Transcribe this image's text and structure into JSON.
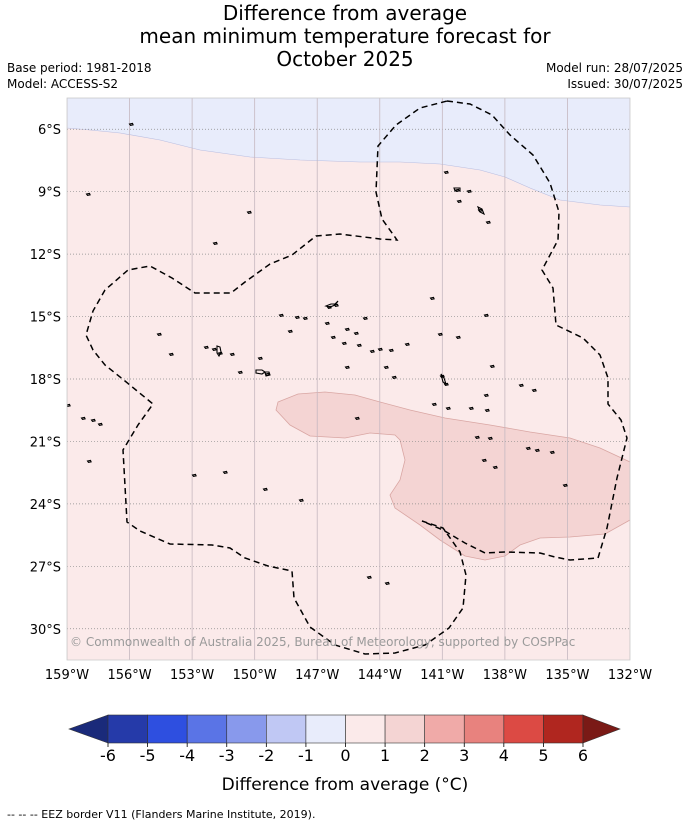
{
  "title": {
    "line1": "Difference from average",
    "line2": "mean minimum temperature forecast for",
    "line3": "October 2025"
  },
  "meta": {
    "base_period": "Base period: 1981-2018",
    "model": "Model: ACCESS-S2",
    "model_run": "Model run: 28/07/2025",
    "issued": "Issued: 30/07/2025"
  },
  "map": {
    "lon_range": [
      -159,
      -132
    ],
    "lat_range": [
      -31.5,
      -4.5
    ],
    "lat_labels": [
      "6°S",
      "9°S",
      "12°S",
      "15°S",
      "18°S",
      "21°S",
      "24°S",
      "27°S",
      "30°S"
    ],
    "lon_labels": [
      "159°W",
      "156°W",
      "153°W",
      "150°W",
      "147°W",
      "144°W",
      "141°W",
      "138°W",
      "135°W",
      "132°W"
    ],
    "copyright": "© Commonwealth of Australia 2025, Bureau of Meteorology, supported by COSPPac",
    "colors": {
      "minus1_0": "#e8ecfb",
      "zero_1": "#fbeaea",
      "one_2": "#f4d4d3"
    }
  },
  "colorbar": {
    "ticks": [
      "-6",
      "-5",
      "-4",
      "-3",
      "-2",
      "-1",
      "0",
      "1",
      "2",
      "3",
      "4",
      "5",
      "6"
    ],
    "colors": [
      "#253aa9",
      "#2e4fe0",
      "#5a74e6",
      "#8899ec",
      "#c0c8f4",
      "#e8ecfb",
      "#fbeaea",
      "#f4d4d3",
      "#f0aaa8",
      "#e8827e",
      "#dc4a44",
      "#b0261f"
    ],
    "under_color": "#1a2a7a",
    "over_color": "#7a1a16",
    "label": "Difference from average (°C)"
  },
  "footnote": "-- -- -- EEZ border V11 (Flanders Marine Institute, 2019)."
}
